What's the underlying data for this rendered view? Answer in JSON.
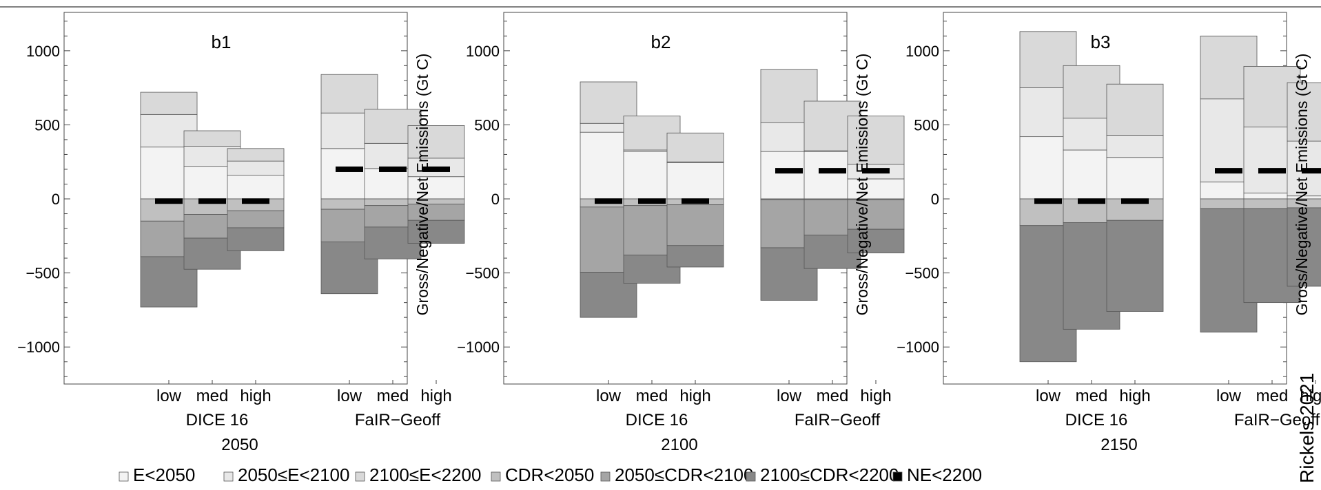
{
  "chart_data": [
    {
      "type": "stacked-bar",
      "title": "b1",
      "year": "2050",
      "groups": [
        "DICE 16",
        "FaIR−Geoff"
      ],
      "categories": [
        "low",
        "med",
        "high"
      ],
      "ylabel": "Gross/Negative/Net Emissions (Gt C)",
      "ylim": [
        -1250,
        1250
      ],
      "yticks": [
        -1000,
        -500,
        0,
        500,
        1000
      ],
      "yticklabels": [
        "−1000",
        "−500",
        "0",
        "500",
        "1000"
      ],
      "bars": [
        {
          "group": "DICE 16",
          "category": "low",
          "E<2050": 350,
          "2050≤E<2100": 220,
          "2100≤E<2200": 150,
          "CDR<2050": -150,
          "2050≤CDR<2100": -240,
          "2100≤CDR<2200": -340,
          "NE<2200": -15
        },
        {
          "group": "DICE 16",
          "category": "med",
          "E<2050": 220,
          "2050≤E<2100": 135,
          "2100≤E<2200": 105,
          "CDR<2050": -105,
          "2050≤CDR<2100": -160,
          "2100≤CDR<2200": -210,
          "NE<2200": -15
        },
        {
          "group": "DICE 16",
          "category": "high",
          "E<2050": 160,
          "2050≤E<2100": 95,
          "2100≤E<2200": 85,
          "CDR<2050": -80,
          "2050≤CDR<2100": -115,
          "2100≤CDR<2200": -155,
          "NE<2200": -15
        },
        {
          "group": "FaIR−Geoff",
          "category": "low",
          "E<2050": 340,
          "2050≤E<2100": 240,
          "2100≤E<2200": 260,
          "CDR<2050": -70,
          "2050≤CDR<2100": -220,
          "2100≤CDR<2200": -350,
          "NE<2200": 200
        },
        {
          "group": "FaIR−Geoff",
          "category": "med",
          "E<2050": 205,
          "2050≤E<2100": 170,
          "2100≤E<2200": 230,
          "CDR<2050": -45,
          "2050≤CDR<2100": -145,
          "2100≤CDR<2200": -215,
          "NE<2200": 200
        },
        {
          "group": "FaIR−Geoff",
          "category": "high",
          "E<2050": 150,
          "2050≤E<2100": 125,
          "2100≤E<2200": 220,
          "CDR<2050": -35,
          "2050≤CDR<2100": -110,
          "2100≤CDR<2200": -155,
          "NE<2200": 200
        }
      ]
    },
    {
      "type": "stacked-bar",
      "title": "b2",
      "year": "2100",
      "groups": [
        "DICE 16",
        "FaIR−Geoff"
      ],
      "categories": [
        "low",
        "med",
        "high"
      ],
      "ylabel": "Gross/Negative/Net Emissions (Gt C)",
      "ylim": [
        -1250,
        1250
      ],
      "yticks": [
        -1000,
        -500,
        0,
        500,
        1000
      ],
      "yticklabels": [
        "−1000",
        "−500",
        "0",
        "500",
        "1000"
      ],
      "bars": [
        {
          "group": "DICE 16",
          "category": "low",
          "E<2050": 450,
          "2050≤E<2100": 60,
          "2100≤E<2200": 280,
          "CDR<2050": -55,
          "2050≤CDR<2100": -440,
          "2100≤CDR<2200": -305,
          "NE<2200": -15
        },
        {
          "group": "DICE 16",
          "category": "med",
          "E<2050": 320,
          "2050≤E<2100": 10,
          "2100≤E<2200": 230,
          "CDR<2050": -45,
          "2050≤CDR<2100": -335,
          "2100≤CDR<2200": -190,
          "NE<2200": -15
        },
        {
          "group": "DICE 16",
          "category": "high",
          "E<2050": 245,
          "2050≤E<2100": 5,
          "2100≤E<2200": 195,
          "CDR<2050": -40,
          "2050≤CDR<2100": -275,
          "2100≤CDR<2200": -145,
          "NE<2200": -15
        },
        {
          "group": "FaIR−Geoff",
          "category": "low",
          "E<2050": 320,
          "2050≤E<2100": 195,
          "2100≤E<2200": 360,
          "CDR<2050": -5,
          "2050≤CDR<2100": -325,
          "2100≤CDR<2200": -355,
          "NE<2200": 190
        },
        {
          "group": "FaIR−Geoff",
          "category": "med",
          "E<2050": 320,
          "2050≤E<2100": 5,
          "2100≤E<2200": 335,
          "CDR<2050": -5,
          "2050≤CDR<2100": -240,
          "2100≤CDR<2200": -225,
          "NE<2200": 190
        },
        {
          "group": "FaIR−Geoff",
          "category": "high",
          "E<2050": 135,
          "2050≤E<2100": 100,
          "2100≤E<2200": 325,
          "CDR<2050": -5,
          "2050≤CDR<2100": -200,
          "2100≤CDR<2200": -160,
          "NE<2200": 190
        }
      ]
    },
    {
      "type": "stacked-bar",
      "title": "b3",
      "year": "2150",
      "groups": [
        "DICE 16",
        "FaIR−Geoff"
      ],
      "categories": [
        "low",
        "med",
        "high"
      ],
      "ylabel": "Gross/Negative/Net Emissions (Gt C)",
      "ylim": [
        -1250,
        1250
      ],
      "yticks": [
        -1000,
        -500,
        0,
        500,
        1000
      ],
      "yticklabels": [
        "−1000",
        "−500",
        "0",
        "500",
        "1000"
      ],
      "bars": [
        {
          "group": "DICE 16",
          "category": "low",
          "E<2050": 420,
          "2050≤E<2100": 330,
          "2100≤E<2200": 380,
          "CDR<2050": -180,
          "2050≤CDR<2100": 0,
          "2100≤CDR<2200": -920,
          "NE<2200": -15
        },
        {
          "group": "DICE 16",
          "category": "med",
          "E<2050": 330,
          "2050≤E<2100": 215,
          "2100≤E<2200": 355,
          "CDR<2050": -160,
          "2050≤CDR<2100": 0,
          "2100≤CDR<2200": -720,
          "NE<2200": -15
        },
        {
          "group": "DICE 16",
          "category": "high",
          "E<2050": 280,
          "2050≤E<2100": 150,
          "2100≤E<2200": 345,
          "CDR<2050": -145,
          "2050≤CDR<2100": 0,
          "2100≤CDR<2200": -615,
          "NE<2200": -15
        },
        {
          "group": "FaIR−Geoff",
          "category": "low",
          "E<2050": 115,
          "2050≤E<2100": 560,
          "2100≤E<2200": 425,
          "CDR<2050": -65,
          "2050≤CDR<2100": 0,
          "2100≤CDR<2200": -835,
          "NE<2200": 190
        },
        {
          "group": "FaIR−Geoff",
          "category": "med",
          "E<2050": 40,
          "2050≤E<2100": 445,
          "2100≤E<2200": 410,
          "CDR<2050": -65,
          "2050≤CDR<2100": 0,
          "2100≤CDR<2200": -635,
          "NE<2200": 190
        },
        {
          "group": "FaIR−Geoff",
          "category": "high",
          "E<2050": 20,
          "2050≤E<2100": 370,
          "2100≤E<2200": 395,
          "CDR<2050": -60,
          "2050≤CDR<2100": 0,
          "2100≤CDR<2200": -530,
          "NE<2200": 190
        }
      ]
    }
  ],
  "legend": {
    "position": "bottom",
    "items": [
      {
        "key": "E<2050",
        "label": "E<2050",
        "color": "#f3f3f3"
      },
      {
        "key": "2050≤E<2100",
        "label": "2050≤E<2100",
        "color": "#e8e8e8"
      },
      {
        "key": "2100≤E<2200",
        "label": "2100≤E<2200",
        "color": "#d9d9d9"
      },
      {
        "key": "CDR<2050",
        "label": "CDR<2050",
        "color": "#c0c0c0"
      },
      {
        "key": "2050≤CDR<2100",
        "label": "2050≤CDR<2100",
        "color": "#a5a5a5"
      },
      {
        "key": "2100≤CDR<2200",
        "label": "2100≤CDR<2200",
        "color": "#888888"
      },
      {
        "key": "NE<2200",
        "label": "NE<2200",
        "color": "#000000"
      }
    ]
  },
  "credit": "Rickels 2021",
  "grid": false
}
